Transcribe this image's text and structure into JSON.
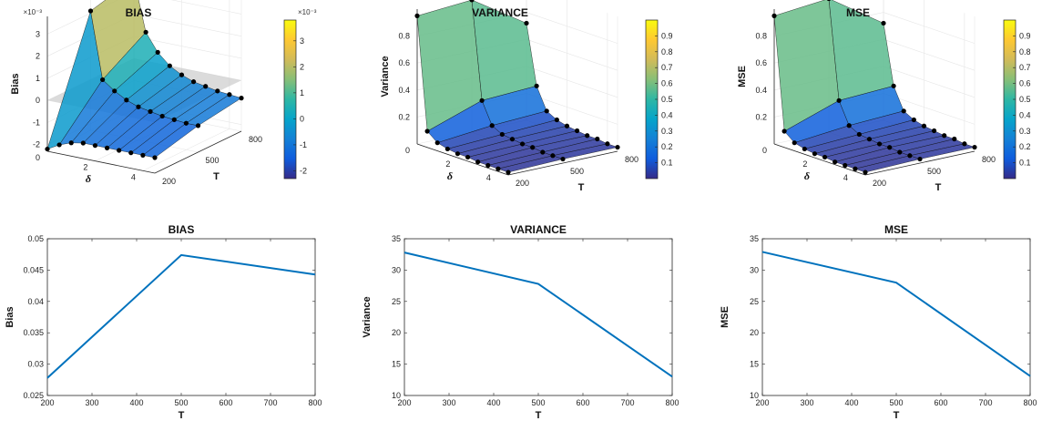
{
  "chart_data": [
    {
      "type": "surface3d",
      "title": "BIAS",
      "zlabel": "Bias",
      "xlabel": "T",
      "ylabel": "δ",
      "x_ticks": [
        "200",
        "500",
        "800"
      ],
      "y_ticks": [
        "0",
        "2",
        "4"
      ],
      "z_ticks": [
        "-2",
        "-1",
        "0",
        "1",
        "2",
        "3"
      ],
      "z_exponent": "×10⁻³",
      "zlim": [
        -2.3,
        3.8
      ],
      "zero_plane": true,
      "T": [
        200,
        500,
        800
      ],
      "delta": [
        0,
        0.5,
        1,
        1.5,
        2,
        2.5,
        3,
        3.5,
        4,
        4.5
      ],
      "z": [
        [
          -2.2,
          3.1,
          3.6
        ],
        [
          -1.9,
          0.1,
          1.3
        ],
        [
          -1.7,
          -0.3,
          0.5
        ],
        [
          -1.6,
          -0.6,
          0.0
        ],
        [
          -1.6,
          -0.8,
          -0.3
        ],
        [
          -1.6,
          -0.9,
          -0.5
        ],
        [
          -1.6,
          -1.0,
          -0.6
        ],
        [
          -1.6,
          -1.05,
          -0.7
        ],
        [
          -1.6,
          -1.1,
          -0.75
        ],
        [
          -1.6,
          -1.1,
          -0.8
        ]
      ],
      "colorbar": {
        "ticks": [
          "-2",
          "-1",
          "0",
          "1",
          "2",
          "3"
        ],
        "exponent": "×10⁻³",
        "range": [
          -2.3,
          3.8
        ]
      }
    },
    {
      "type": "surface3d",
      "title": "VARIANCE",
      "zlabel": "Variance",
      "xlabel": "T",
      "ylabel": "δ",
      "x_ticks": [
        "200",
        "500",
        "800"
      ],
      "y_ticks": [
        "0",
        "2",
        "4"
      ],
      "z_ticks": [
        "0.2",
        "0.4",
        "0.6",
        "0.8"
      ],
      "zlim": [
        0,
        1.0
      ],
      "T": [
        200,
        500,
        800
      ],
      "delta": [
        0,
        0.5,
        1,
        1.5,
        2,
        2.5,
        3,
        3.5,
        4,
        4.5
      ],
      "z": [
        [
          0.95,
          0.98,
          0.72
        ],
        [
          0.12,
          0.26,
          0.28
        ],
        [
          0.06,
          0.1,
          0.12
        ],
        [
          0.04,
          0.06,
          0.08
        ],
        [
          0.03,
          0.05,
          0.06
        ],
        [
          0.03,
          0.04,
          0.05
        ],
        [
          0.02,
          0.04,
          0.04
        ],
        [
          0.02,
          0.03,
          0.04
        ],
        [
          0.02,
          0.03,
          0.03
        ],
        [
          0.02,
          0.03,
          0.03
        ]
      ],
      "colorbar": {
        "ticks": [
          "0.1",
          "0.2",
          "0.3",
          "0.4",
          "0.5",
          "0.6",
          "0.7",
          "0.8",
          "0.9"
        ],
        "range": [
          0,
          1.0
        ]
      }
    },
    {
      "type": "surface3d",
      "title": "MSE",
      "zlabel": "MSE",
      "xlabel": "T",
      "ylabel": "δ",
      "x_ticks": [
        "200",
        "500",
        "800"
      ],
      "y_ticks": [
        "0",
        "2",
        "4"
      ],
      "z_ticks": [
        "0.2",
        "0.4",
        "0.6",
        "0.8"
      ],
      "zlim": [
        0,
        1.0
      ],
      "T": [
        200,
        500,
        800
      ],
      "delta": [
        0,
        0.5,
        1,
        1.5,
        2,
        2.5,
        3,
        3.5,
        4,
        4.5
      ],
      "z": [
        [
          0.95,
          0.99,
          0.72
        ],
        [
          0.12,
          0.26,
          0.28
        ],
        [
          0.06,
          0.1,
          0.12
        ],
        [
          0.04,
          0.06,
          0.08
        ],
        [
          0.03,
          0.05,
          0.06
        ],
        [
          0.03,
          0.04,
          0.05
        ],
        [
          0.02,
          0.04,
          0.04
        ],
        [
          0.02,
          0.03,
          0.04
        ],
        [
          0.02,
          0.03,
          0.03
        ],
        [
          0.02,
          0.03,
          0.03
        ]
      ],
      "colorbar": {
        "ticks": [
          "0.1",
          "0.2",
          "0.3",
          "0.4",
          "0.5",
          "0.6",
          "0.7",
          "0.8",
          "0.9"
        ],
        "range": [
          0,
          1.0
        ]
      }
    },
    {
      "type": "line",
      "title": "BIAS",
      "xlabel": "T",
      "ylabel": "Bias",
      "x": [
        200,
        500,
        800
      ],
      "y": [
        0.0278,
        0.0474,
        0.0443
      ],
      "xlim": [
        200,
        800
      ],
      "ylim": [
        0.025,
        0.05
      ],
      "x_ticks": [
        "200",
        "300",
        "400",
        "500",
        "600",
        "700",
        "800"
      ],
      "y_ticks": [
        "0.025",
        "0.03",
        "0.035",
        "0.04",
        "0.045",
        "0.05"
      ]
    },
    {
      "type": "line",
      "title": "VARIANCE",
      "xlabel": "T",
      "ylabel": "Variance",
      "x": [
        200,
        500,
        800
      ],
      "y": [
        32.8,
        27.8,
        13.0
      ],
      "xlim": [
        200,
        800
      ],
      "ylim": [
        10,
        35
      ],
      "x_ticks": [
        "200",
        "300",
        "400",
        "500",
        "600",
        "700",
        "800"
      ],
      "y_ticks": [
        "10",
        "15",
        "20",
        "25",
        "30",
        "35"
      ]
    },
    {
      "type": "line",
      "title": "MSE",
      "xlabel": "T",
      "ylabel": "MSE",
      "x": [
        200,
        500,
        800
      ],
      "y": [
        32.9,
        28.0,
        13.1
      ],
      "xlim": [
        200,
        800
      ],
      "ylim": [
        10,
        35
      ],
      "x_ticks": [
        "200",
        "300",
        "400",
        "500",
        "600",
        "700",
        "800"
      ],
      "y_ticks": [
        "10",
        "15",
        "20",
        "25",
        "30",
        "35"
      ]
    }
  ],
  "colors": {
    "line": "#0072BD",
    "parula": [
      "#352A87",
      "#0F5CDD",
      "#1481D6",
      "#06A4CA",
      "#2EB7A4",
      "#87BF77",
      "#D1BB59",
      "#FEC832",
      "#F9FB0E"
    ],
    "zero_plane": "#bdbdbd"
  }
}
